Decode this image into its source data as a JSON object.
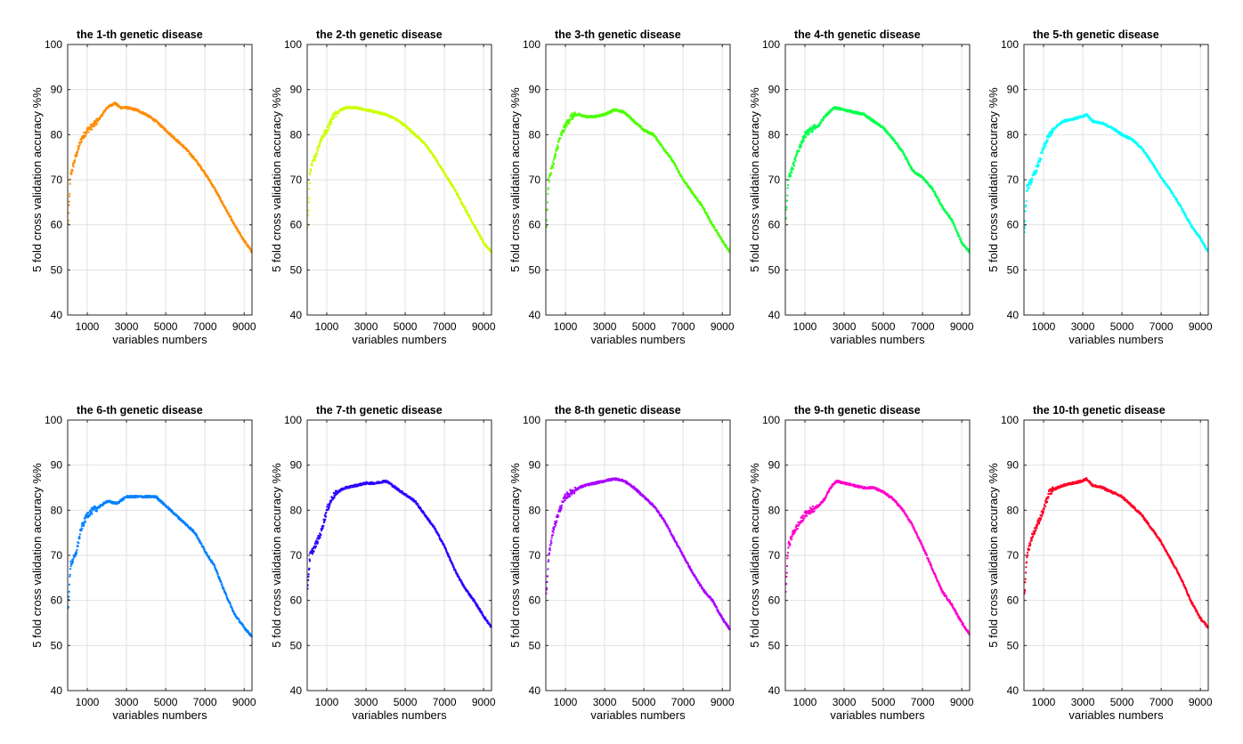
{
  "chart_data": [
    {
      "type": "scatter",
      "title": "the  1-th genetic disease",
      "xlabel": "variables numbers",
      "ylabel": "5 fold cross validation accuracy %%",
      "xlim": [
        0,
        9400
      ],
      "ylim": [
        40,
        100
      ],
      "xticks": [
        1000,
        3000,
        5000,
        7000,
        9000
      ],
      "yticks": [
        40,
        50,
        60,
        70,
        80,
        90,
        100
      ],
      "grid": true,
      "color": "#ff8c00",
      "series": [
        {
          "x": [
            20,
            150,
            400,
            700,
            1000,
            1300,
            1700,
            2000,
            2400,
            2700,
            3000,
            3500,
            4000,
            4500,
            5000,
            5500,
            6000,
            6500,
            7000,
            7500,
            8000,
            8500,
            9000,
            9400
          ],
          "y": [
            60,
            71,
            75,
            79,
            81,
            82,
            84,
            86,
            87,
            86,
            86,
            85.5,
            84.5,
            83,
            81,
            79,
            77,
            74.5,
            71.5,
            68,
            64,
            60,
            56.5,
            54
          ]
        }
      ]
    },
    {
      "type": "scatter",
      "title": "the  2-th genetic disease",
      "xlabel": "variables numbers",
      "ylabel": "5 fold cross validation accuracy %%",
      "xlim": [
        0,
        9400
      ],
      "ylim": [
        40,
        100
      ],
      "xticks": [
        1000,
        3000,
        5000,
        7000,
        9000
      ],
      "yticks": [
        40,
        50,
        60,
        70,
        80,
        90,
        100
      ],
      "grid": true,
      "color": "#ccff00",
      "series": [
        {
          "x": [
            20,
            150,
            400,
            700,
            1000,
            1300,
            1700,
            2000,
            2500,
            3000,
            3500,
            4000,
            4500,
            5000,
            5500,
            6000,
            6500,
            7000,
            7500,
            8000,
            8500,
            9000,
            9400
          ],
          "y": [
            59,
            72,
            75,
            79,
            81,
            84,
            85.5,
            86,
            86,
            85.5,
            85,
            84.5,
            83.5,
            82,
            80,
            78,
            75,
            71.5,
            68,
            64,
            60,
            56,
            54
          ]
        }
      ]
    },
    {
      "type": "scatter",
      "title": "the  3-th genetic disease",
      "xlabel": "variables numbers",
      "ylabel": "5 fold cross validation accuracy %%",
      "xlim": [
        0,
        9400
      ],
      "ylim": [
        40,
        100
      ],
      "xticks": [
        1000,
        3000,
        5000,
        7000,
        9000
      ],
      "yticks": [
        40,
        50,
        60,
        70,
        80,
        90,
        100
      ],
      "grid": true,
      "color": "#4cff00",
      "series": [
        {
          "x": [
            20,
            150,
            400,
            700,
            1000,
            1300,
            1700,
            2000,
            2500,
            3000,
            3500,
            4000,
            4500,
            5000,
            5500,
            6000,
            6500,
            7000,
            7500,
            8000,
            8500,
            9000,
            9400
          ],
          "y": [
            59,
            70,
            74,
            79,
            82,
            84,
            84.5,
            84,
            84,
            84.5,
            85.5,
            85,
            83,
            81,
            80,
            77,
            74,
            70,
            67,
            64,
            60,
            56.5,
            54
          ]
        }
      ]
    },
    {
      "type": "scatter",
      "title": "the  4-th genetic disease",
      "xlabel": "variables numbers",
      "ylabel": "5 fold cross validation accuracy %%",
      "xlim": [
        0,
        9400
      ],
      "ylim": [
        40,
        100
      ],
      "xticks": [
        1000,
        3000,
        5000,
        7000,
        9000
      ],
      "yticks": [
        40,
        50,
        60,
        70,
        80,
        90,
        100
      ],
      "grid": true,
      "color": "#00ff4c",
      "series": [
        {
          "x": [
            20,
            150,
            400,
            700,
            1000,
            1300,
            1700,
            2000,
            2500,
            3000,
            3500,
            4000,
            4500,
            5000,
            5500,
            6000,
            6500,
            7000,
            7500,
            8000,
            8500,
            9000,
            9400
          ],
          "y": [
            61,
            70,
            73,
            77,
            80,
            81,
            82,
            84,
            86,
            85.5,
            85,
            84.5,
            83,
            81.5,
            79,
            76,
            72,
            70.5,
            68,
            64,
            61,
            56,
            54
          ]
        }
      ]
    },
    {
      "type": "scatter",
      "title": "the  5-th genetic disease",
      "xlabel": "variables numbers",
      "ylabel": "5 fold cross validation accuracy %%",
      "xlim": [
        0,
        9400
      ],
      "ylim": [
        40,
        100
      ],
      "xticks": [
        1000,
        3000,
        5000,
        7000,
        9000
      ],
      "yticks": [
        40,
        50,
        60,
        70,
        80,
        90,
        100
      ],
      "grid": true,
      "color": "#00ffff",
      "series": [
        {
          "x": [
            20,
            150,
            400,
            700,
            1000,
            1300,
            1700,
            2000,
            2500,
            3000,
            3200,
            3500,
            4000,
            4500,
            5000,
            5500,
            6000,
            6500,
            7000,
            7500,
            8000,
            8500,
            9000,
            9400
          ],
          "y": [
            58,
            68,
            70,
            73,
            77,
            80,
            82,
            83,
            83.5,
            84,
            84.5,
            83,
            82.5,
            81.5,
            80,
            79,
            77,
            74,
            70.5,
            67.5,
            64,
            60,
            57,
            54
          ]
        }
      ]
    },
    {
      "type": "scatter",
      "title": "the  6-th genetic disease",
      "xlabel": "variables numbers",
      "ylabel": "5 fold cross validation accuracy %%",
      "xlim": [
        0,
        9400
      ],
      "ylim": [
        40,
        100
      ],
      "xticks": [
        1000,
        3000,
        5000,
        7000,
        9000
      ],
      "yticks": [
        40,
        50,
        60,
        70,
        80,
        90,
        100
      ],
      "grid": true,
      "color": "#0080ff",
      "series": [
        {
          "x": [
            20,
            150,
            400,
            700,
            1000,
            1300,
            1700,
            2000,
            2500,
            3000,
            3500,
            4000,
            4500,
            5000,
            5500,
            6000,
            6500,
            7000,
            7500,
            8000,
            8500,
            9000,
            9400
          ],
          "y": [
            58,
            68,
            70,
            76,
            79,
            80,
            81,
            82,
            81.5,
            83,
            83,
            83,
            83,
            81,
            79,
            77,
            75,
            71,
            67.5,
            62,
            57,
            54,
            52
          ]
        }
      ]
    },
    {
      "type": "scatter",
      "title": "the  7-th genetic disease",
      "xlabel": "variables numbers",
      "ylabel": "5 fold cross validation accuracy %%",
      "xlim": [
        0,
        9400
      ],
      "ylim": [
        40,
        100
      ],
      "xticks": [
        1000,
        3000,
        5000,
        7000,
        9000
      ],
      "yticks": [
        40,
        50,
        60,
        70,
        80,
        90,
        100
      ],
      "grid": true,
      "color": "#2a00ff",
      "series": [
        {
          "x": [
            20,
            150,
            400,
            700,
            1000,
            1300,
            1700,
            2000,
            2500,
            3000,
            3500,
            4000,
            4200,
            4500,
            5000,
            5500,
            6000,
            6500,
            7000,
            7500,
            8000,
            8500,
            9000,
            9400
          ],
          "y": [
            63,
            70,
            72,
            75,
            80,
            83,
            84.5,
            85,
            85.5,
            86,
            86,
            86.5,
            86,
            85,
            83.5,
            82,
            79,
            76,
            72,
            67,
            63,
            60,
            56.5,
            54
          ]
        }
      ]
    },
    {
      "type": "scatter",
      "title": "the  8-th genetic disease",
      "xlabel": "variables numbers",
      "ylabel": "5 fold cross validation accuracy %%",
      "xlim": [
        0,
        9400
      ],
      "ylim": [
        40,
        100
      ],
      "xticks": [
        1000,
        3000,
        5000,
        7000,
        9000
      ],
      "yticks": [
        40,
        50,
        60,
        70,
        80,
        90,
        100
      ],
      "grid": true,
      "color": "#aa00ff",
      "series": [
        {
          "x": [
            20,
            150,
            400,
            700,
            1000,
            1300,
            1700,
            2000,
            2500,
            3000,
            3500,
            4000,
            4500,
            5000,
            5500,
            6000,
            6500,
            7000,
            7500,
            8000,
            8500,
            9000,
            9400
          ],
          "y": [
            61,
            70,
            76,
            80,
            83,
            84,
            85,
            85.5,
            86,
            86.5,
            87,
            86.5,
            85,
            83,
            81,
            78,
            74,
            70,
            66,
            62.5,
            60,
            56,
            53.5
          ]
        }
      ]
    },
    {
      "type": "scatter",
      "title": "the  9-th genetic disease",
      "xlabel": "variables numbers",
      "ylabel": "5 fold cross validation accuracy %%",
      "xlim": [
        0,
        9400
      ],
      "ylim": [
        40,
        100
      ],
      "xticks": [
        1000,
        3000,
        5000,
        7000,
        9000
      ],
      "yticks": [
        40,
        50,
        60,
        70,
        80,
        90,
        100
      ],
      "grid": true,
      "color": "#ff00cc",
      "series": [
        {
          "x": [
            20,
            150,
            400,
            700,
            1000,
            1300,
            1700,
            2000,
            2300,
            2600,
            3000,
            3500,
            4000,
            4500,
            5000,
            5500,
            6000,
            6500,
            7000,
            7500,
            8000,
            8500,
            9000,
            9400
          ],
          "y": [
            62,
            72,
            75,
            77,
            79,
            80,
            81,
            82.5,
            85,
            86.5,
            86,
            85.5,
            85,
            85,
            84,
            82.5,
            80,
            76.5,
            72,
            67,
            62,
            59,
            55,
            52.5
          ]
        }
      ]
    },
    {
      "type": "scatter",
      "title": "the  10-th genetic disease",
      "xlabel": "variables numbers",
      "ylabel": "5 fold cross validation accuracy %%",
      "xlim": [
        0,
        9400
      ],
      "ylim": [
        40,
        100
      ],
      "xticks": [
        1000,
        3000,
        5000,
        7000,
        9000
      ],
      "yticks": [
        40,
        50,
        60,
        70,
        80,
        90,
        100
      ],
      "grid": true,
      "color": "#ff0026",
      "series": [
        {
          "x": [
            20,
            150,
            400,
            700,
            1000,
            1300,
            1700,
            2000,
            2500,
            3000,
            3200,
            3500,
            4000,
            4500,
            5000,
            5500,
            6000,
            6500,
            7000,
            7500,
            8000,
            8500,
            9000,
            9400
          ],
          "y": [
            61,
            70,
            74,
            77,
            80,
            84,
            85,
            85.5,
            86,
            86.5,
            87,
            85.5,
            85,
            84,
            83,
            81,
            79,
            76,
            73,
            69,
            65,
            60,
            56,
            54
          ]
        }
      ]
    }
  ]
}
